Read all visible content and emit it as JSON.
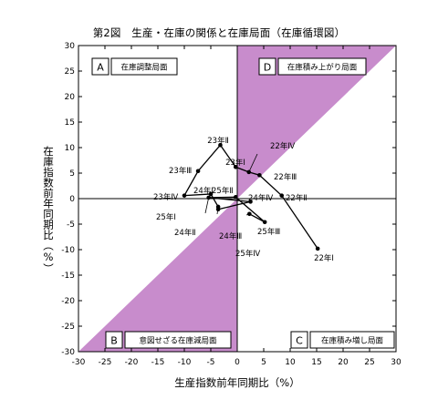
{
  "chart_data": {
    "type": "line",
    "title": "第2図　生産・在庫の関係と在庫局面（在庫循環図）",
    "xlabel": "生産指数前年同期比（%）",
    "ylabel": "在庫指数前年同期比（%）",
    "xlim": [
      -30,
      30
    ],
    "ylim": [
      -30,
      30
    ],
    "xticks": [
      -30,
      -25,
      -20,
      -15,
      -10,
      -5,
      0,
      5,
      10,
      15,
      20,
      25,
      30
    ],
    "yticks": [
      -30,
      -25,
      -20,
      -15,
      -10,
      -5,
      0,
      5,
      10,
      15,
      20,
      25,
      30
    ],
    "grid": false,
    "shade_color": "#c88ccc",
    "series": [
      {
        "points": [
          {
            "label": "22年Ⅰ",
            "x": 15.2,
            "y": -9.8
          },
          {
            "label": "22年Ⅱ",
            "x": 8.4,
            "y": 0.6
          },
          {
            "label": "22年Ⅲ",
            "x": 4.2,
            "y": 4.6
          },
          {
            "label": "22年Ⅳ",
            "x": 2.2,
            "y": 5.2
          },
          {
            "label": "23年Ⅰ",
            "x": -0.3,
            "y": 6.2
          },
          {
            "label": "23年Ⅱ",
            "x": -3.2,
            "y": 10.5
          },
          {
            "label": "23年Ⅲ",
            "x": -7.4,
            "y": 5.4
          },
          {
            "label": "23年Ⅳ",
            "x": -10.0,
            "y": 0.6
          },
          {
            "label": "24年Ⅰ",
            "x": -5.0,
            "y": 0.9
          },
          {
            "label": "24年Ⅱ",
            "x": -3.6,
            "y": -1.6
          },
          {
            "label": "24年Ⅲ",
            "x": -3.6,
            "y": -2.1
          },
          {
            "label": "24年Ⅳ",
            "x": 2.5,
            "y": -0.6
          },
          {
            "label": "25年Ⅰ",
            "x": -5.4,
            "y": 0.2
          },
          {
            "label": "25年Ⅱ",
            "x": -0.3,
            "y": 0.3
          },
          {
            "label": "25年Ⅲ",
            "x": 5.2,
            "y": -4.6
          },
          {
            "label": "25年Ⅳ",
            "x": 2.3,
            "y": -3.0
          }
        ]
      }
    ],
    "quadrants": [
      {
        "letter": "A",
        "label": "在庫調整局面",
        "position": "top-left"
      },
      {
        "letter": "D",
        "label": "在庫積み上がり局面",
        "position": "top-right"
      },
      {
        "letter": "B",
        "label": "意図せざる在庫減局面",
        "position": "bottom-left"
      },
      {
        "letter": "C",
        "label": "在庫積み増し局面",
        "position": "bottom-right"
      }
    ]
  }
}
